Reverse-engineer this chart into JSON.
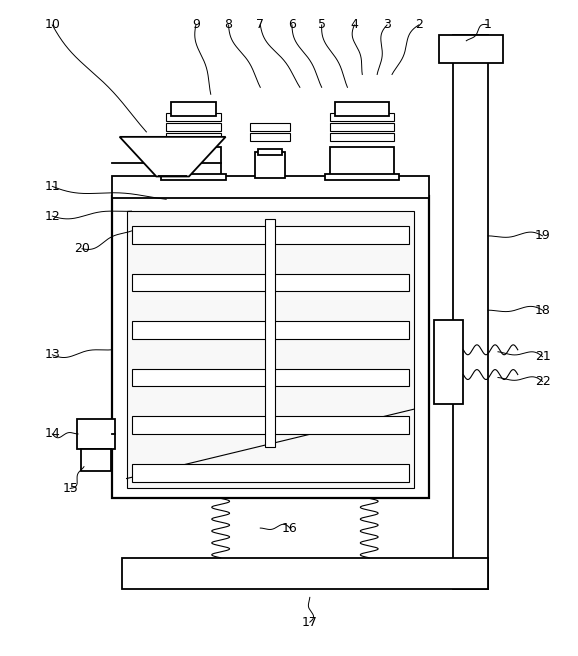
{
  "fig_width": 5.78,
  "fig_height": 6.56,
  "dpi": 100,
  "line_color": "#000000",
  "bg_color": "#ffffff",
  "lw": 1.3,
  "tlw": 0.8
}
